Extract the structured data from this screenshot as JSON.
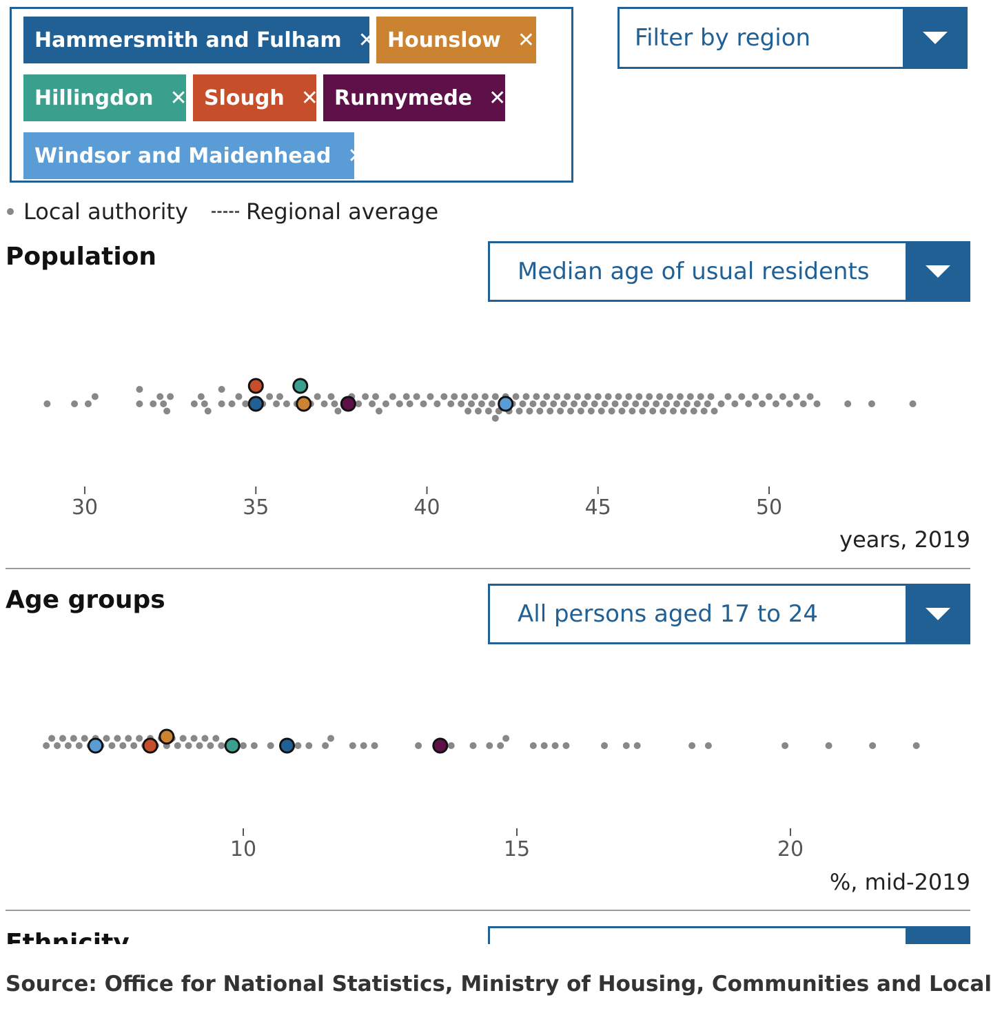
{
  "selected_areas": [
    {
      "label": "Hammersmith and Fulham",
      "color": "#206095"
    },
    {
      "label": "Hounslow",
      "color": "#cb8331"
    },
    {
      "label": "Hillingdon",
      "color": "#3b9f8e"
    },
    {
      "label": "Slough",
      "color": "#c64e2b"
    },
    {
      "label": "Runnymede",
      "color": "#5e1149"
    },
    {
      "label": "Windsor and Maidenhead",
      "color": "#5a9cd6"
    }
  ],
  "chip_close_glyph": "✕",
  "region_filter": {
    "label": "Filter by region"
  },
  "legend": {
    "local_authority": "Local authority",
    "regional_average": "Regional average"
  },
  "sections": [
    {
      "title": "Population",
      "selector": "Median age of usual residents",
      "units": "years, 2019"
    },
    {
      "title": "Age groups",
      "selector": "All persons aged 17 to 24",
      "units": "%, mid-2019"
    },
    {
      "title": "Ethnicity",
      "selector": ""
    }
  ],
  "source": "Source: Office for National Statistics, Ministry of Housing, Communities and Local",
  "colors": {
    "accent": "#206095",
    "background_dot": "#888888"
  },
  "chart_data": [
    {
      "type": "scatter",
      "chart": "beeswarm",
      "title": "Median age of usual residents",
      "xlabel": "years, 2019",
      "xlim": [
        27.7,
        56
      ],
      "ticks": [
        30,
        35,
        40,
        45,
        50
      ],
      "background_values": [
        28.9,
        29.7,
        30.1,
        30.3,
        31.6,
        31.6,
        32.0,
        32.2,
        32.3,
        32.4,
        32.5,
        33.2,
        33.4,
        33.5,
        33.6,
        34.0,
        34.0,
        34.3,
        34.5,
        34.7,
        35.2,
        35.4,
        35.6,
        35.7,
        35.9,
        36.2,
        36.6,
        36.8,
        37.0,
        37.2,
        37.3,
        37.4,
        37.6,
        37.8,
        38.0,
        38.2,
        38.4,
        38.5,
        38.6,
        38.8,
        39.0,
        39.2,
        39.4,
        39.5,
        39.7,
        39.9,
        40.1,
        40.3,
        40.5,
        40.7,
        40.8,
        41.0,
        41.1,
        41.2,
        41.3,
        41.4,
        41.5,
        41.6,
        41.7,
        41.8,
        41.9,
        42.0,
        42.0,
        42.1,
        42.2,
        42.3,
        42.4,
        42.5,
        42.6,
        42.7,
        42.8,
        42.9,
        43.0,
        43.1,
        43.2,
        43.3,
        43.4,
        43.5,
        43.6,
        43.7,
        43.8,
        43.9,
        44.0,
        44.1,
        44.2,
        44.3,
        44.4,
        44.5,
        44.6,
        44.7,
        44.8,
        44.9,
        45.0,
        45.1,
        45.2,
        45.3,
        45.4,
        45.5,
        45.6,
        45.7,
        45.8,
        45.9,
        46.0,
        46.1,
        46.2,
        46.3,
        46.4,
        46.5,
        46.6,
        46.7,
        46.8,
        46.9,
        47.0,
        47.1,
        47.2,
        47.3,
        47.4,
        47.5,
        47.6,
        47.7,
        47.8,
        47.9,
        48.0,
        48.1,
        48.2,
        48.3,
        48.4,
        48.6,
        48.8,
        49.0,
        49.2,
        49.4,
        49.6,
        49.8,
        50.0,
        50.2,
        50.4,
        50.6,
        50.8,
        51.0,
        51.2,
        51.4,
        52.3,
        53.0,
        54.2
      ],
      "highlighted": [
        {
          "name": "Hammersmith and Fulham",
          "value": 35.0
        },
        {
          "name": "Slough",
          "value": 35.0
        },
        {
          "name": "Hounslow",
          "value": 36.4
        },
        {
          "name": "Hillingdon",
          "value": 36.3
        },
        {
          "name": "Runnymede",
          "value": 37.7
        },
        {
          "name": "Windsor and Maidenhead",
          "value": 42.3
        }
      ]
    },
    {
      "type": "scatter",
      "chart": "beeswarm",
      "title": "All persons aged 17 to 24",
      "xlabel": "%, mid-2019",
      "xlim": [
        6.2,
        23.5
      ],
      "ticks": [
        10,
        15,
        20
      ],
      "background_values": [
        6.4,
        6.5,
        6.6,
        6.7,
        6.8,
        6.9,
        7.0,
        7.1,
        7.2,
        7.3,
        7.4,
        7.5,
        7.6,
        7.7,
        7.8,
        7.9,
        8.0,
        8.1,
        8.2,
        8.3,
        8.4,
        8.5,
        8.6,
        8.7,
        8.8,
        8.9,
        9.0,
        9.1,
        9.2,
        9.3,
        9.4,
        9.5,
        9.6,
        9.8,
        10.0,
        10.2,
        10.5,
        10.8,
        11.0,
        11.2,
        11.5,
        11.6,
        12.0,
        12.2,
        12.4,
        13.2,
        13.6,
        13.8,
        14.2,
        14.5,
        14.7,
        14.8,
        15.3,
        15.5,
        15.7,
        15.9,
        16.6,
        17.0,
        17.2,
        18.2,
        18.5,
        19.9,
        20.7,
        21.5,
        22.3
      ],
      "highlighted": [
        {
          "name": "Windsor and Maidenhead",
          "value": 7.3
        },
        {
          "name": "Slough",
          "value": 8.3
        },
        {
          "name": "Hounslow",
          "value": 8.6
        },
        {
          "name": "Hillingdon",
          "value": 9.8
        },
        {
          "name": "Hammersmith and Fulham",
          "value": 10.8
        },
        {
          "name": "Runnymede",
          "value": 13.6
        }
      ]
    }
  ]
}
